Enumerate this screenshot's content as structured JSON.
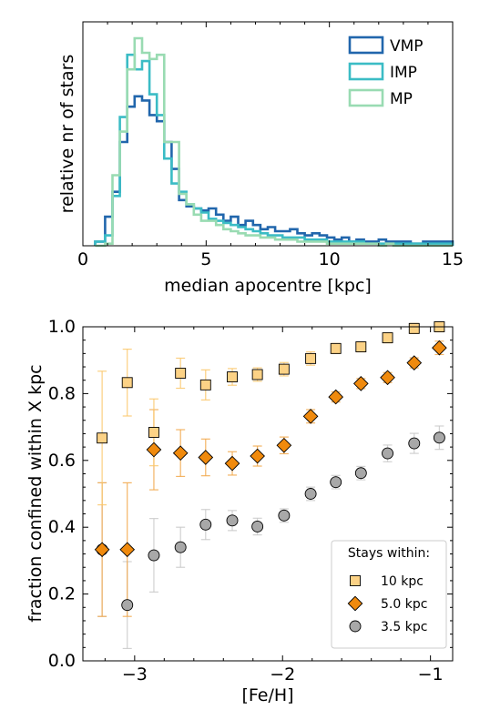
{
  "chart_data": [
    {
      "type": "histogram",
      "xlabel": "median apocentre [kpc]",
      "ylabel": "relative nr of stars",
      "xlim": [
        0,
        15
      ],
      "xticks": [
        "0",
        "5",
        "10",
        "15"
      ],
      "legend_position": "top-right",
      "bin_edges": [
        0.5,
        0.9,
        1.2,
        1.5,
        1.8,
        2.1,
        2.4,
        2.7,
        3.0,
        3.3,
        3.6,
        3.9,
        4.2,
        4.5,
        4.8,
        5.1,
        5.4,
        5.7,
        6.0,
        6.3,
        6.6,
        6.9,
        7.2,
        7.5,
        7.8,
        8.1,
        8.4,
        8.7,
        9.0,
        9.3,
        9.6,
        9.9,
        10.2,
        10.5,
        10.8,
        11.1,
        11.4,
        11.7,
        12.0,
        12.3,
        12.6,
        12.9,
        13.3,
        13.8,
        14.3,
        15.0
      ],
      "series": [
        {
          "name": "VMP",
          "color": "#2166ac",
          "values": [
            0.02,
            0.14,
            0.26,
            0.5,
            0.67,
            0.72,
            0.7,
            0.63,
            0.6,
            0.5,
            0.37,
            0.22,
            0.19,
            0.18,
            0.17,
            0.18,
            0.15,
            0.12,
            0.14,
            0.1,
            0.12,
            0.1,
            0.08,
            0.09,
            0.07,
            0.07,
            0.08,
            0.06,
            0.05,
            0.06,
            0.05,
            0.04,
            0.03,
            0.04,
            0.02,
            0.03,
            0.02,
            0.02,
            0.03,
            0.02,
            0.02,
            0.02,
            0.01,
            0.02,
            0.02
          ]
        },
        {
          "name": "IMP",
          "color": "#3bbcc5",
          "values": [
            0.02,
            0.05,
            0.24,
            0.62,
            0.92,
            0.85,
            0.89,
            0.73,
            0.63,
            0.42,
            0.3,
            0.26,
            0.2,
            0.18,
            0.16,
            0.13,
            0.12,
            0.11,
            0.1,
            0.09,
            0.08,
            0.07,
            0.06,
            0.05,
            0.05,
            0.04,
            0.04,
            0.04,
            0.03,
            0.03,
            0.03,
            0.02,
            0.02,
            0.02,
            0.02,
            0.02,
            0.01,
            0.01,
            0.01,
            0.01,
            0.01,
            0.01,
            0.01,
            0.01,
            0.01
          ]
        },
        {
          "name": "MP",
          "color": "#99dbb2",
          "values": [
            0.0,
            0.01,
            0.34,
            0.55,
            0.85,
            1.0,
            0.93,
            0.9,
            0.92,
            0.5,
            0.5,
            0.25,
            0.2,
            0.15,
            0.12,
            0.12,
            0.1,
            0.08,
            0.07,
            0.06,
            0.05,
            0.05,
            0.04,
            0.04,
            0.03,
            0.03,
            0.03,
            0.02,
            0.02,
            0.02,
            0.02,
            0.01,
            0.01,
            0.01,
            0.01,
            0.01,
            0.01,
            0.01,
            0.0,
            0.01,
            0.0,
            0.0,
            0.0,
            0.0,
            0.0
          ]
        }
      ]
    },
    {
      "type": "scatter",
      "xlabel": "[Fe/H]",
      "ylabel": "fraction confined within X kpc",
      "xlim": [
        -3.35,
        -0.85
      ],
      "ylim": [
        0.0,
        1.0
      ],
      "xticks": [
        "−3",
        "−2",
        "−1"
      ],
      "yticks": [
        "0.0",
        "0.2",
        "0.4",
        "0.6",
        "0.8",
        "1.0"
      ],
      "legend_title": "Stays within:",
      "legend_position": "bottom-right",
      "x": [
        -3.22,
        -3.05,
        -2.87,
        -2.69,
        -2.52,
        -2.34,
        -2.17,
        -1.99,
        -1.81,
        -1.64,
        -1.47,
        -1.29,
        -1.11,
        -0.94
      ],
      "series": [
        {
          "name": "10 kpc",
          "marker": "square",
          "color": "#fcd286",
          "err_color": "#fbc76a",
          "values": [
            0.667,
            0.833,
            0.684,
            0.861,
            0.826,
            0.85,
            0.857,
            0.873,
            0.905,
            0.935,
            0.94,
            0.967,
            0.995,
            1.0
          ],
          "errors": [
            0.2,
            0.1,
            0.1,
            0.045,
            0.045,
            0.025,
            0.02,
            0.02,
            0.02,
            0.015,
            0.015,
            0.015,
            0.015,
            0.015
          ]
        },
        {
          "name": "5.0 kpc",
          "marker": "diamond",
          "color": "#f08a0d",
          "err_color": "#f2a84a",
          "values": [
            0.333,
            0.333,
            0.632,
            0.622,
            0.609,
            0.591,
            0.613,
            0.645,
            0.732,
            0.79,
            0.83,
            0.848,
            0.892,
            0.937
          ],
          "errors": [
            0.2,
            0.2,
            0.12,
            0.07,
            0.055,
            0.035,
            0.03,
            0.025,
            0.02,
            0.015,
            0.015,
            0.015,
            0.015,
            0.02
          ]
        },
        {
          "name": "3.5 kpc",
          "marker": "circle",
          "color": "#a8a8a8",
          "err_color": "#c9c9c9",
          "values": [
            0.333,
            0.167,
            0.316,
            0.34,
            0.408,
            0.42,
            0.402,
            0.435,
            0.5,
            0.535,
            0.562,
            0.621,
            0.651,
            0.668
          ],
          "errors": [
            0.2,
            0.13,
            0.11,
            0.06,
            0.045,
            0.03,
            0.025,
            0.02,
            0.02,
            0.02,
            0.02,
            0.025,
            0.03,
            0.035
          ]
        }
      ]
    }
  ]
}
